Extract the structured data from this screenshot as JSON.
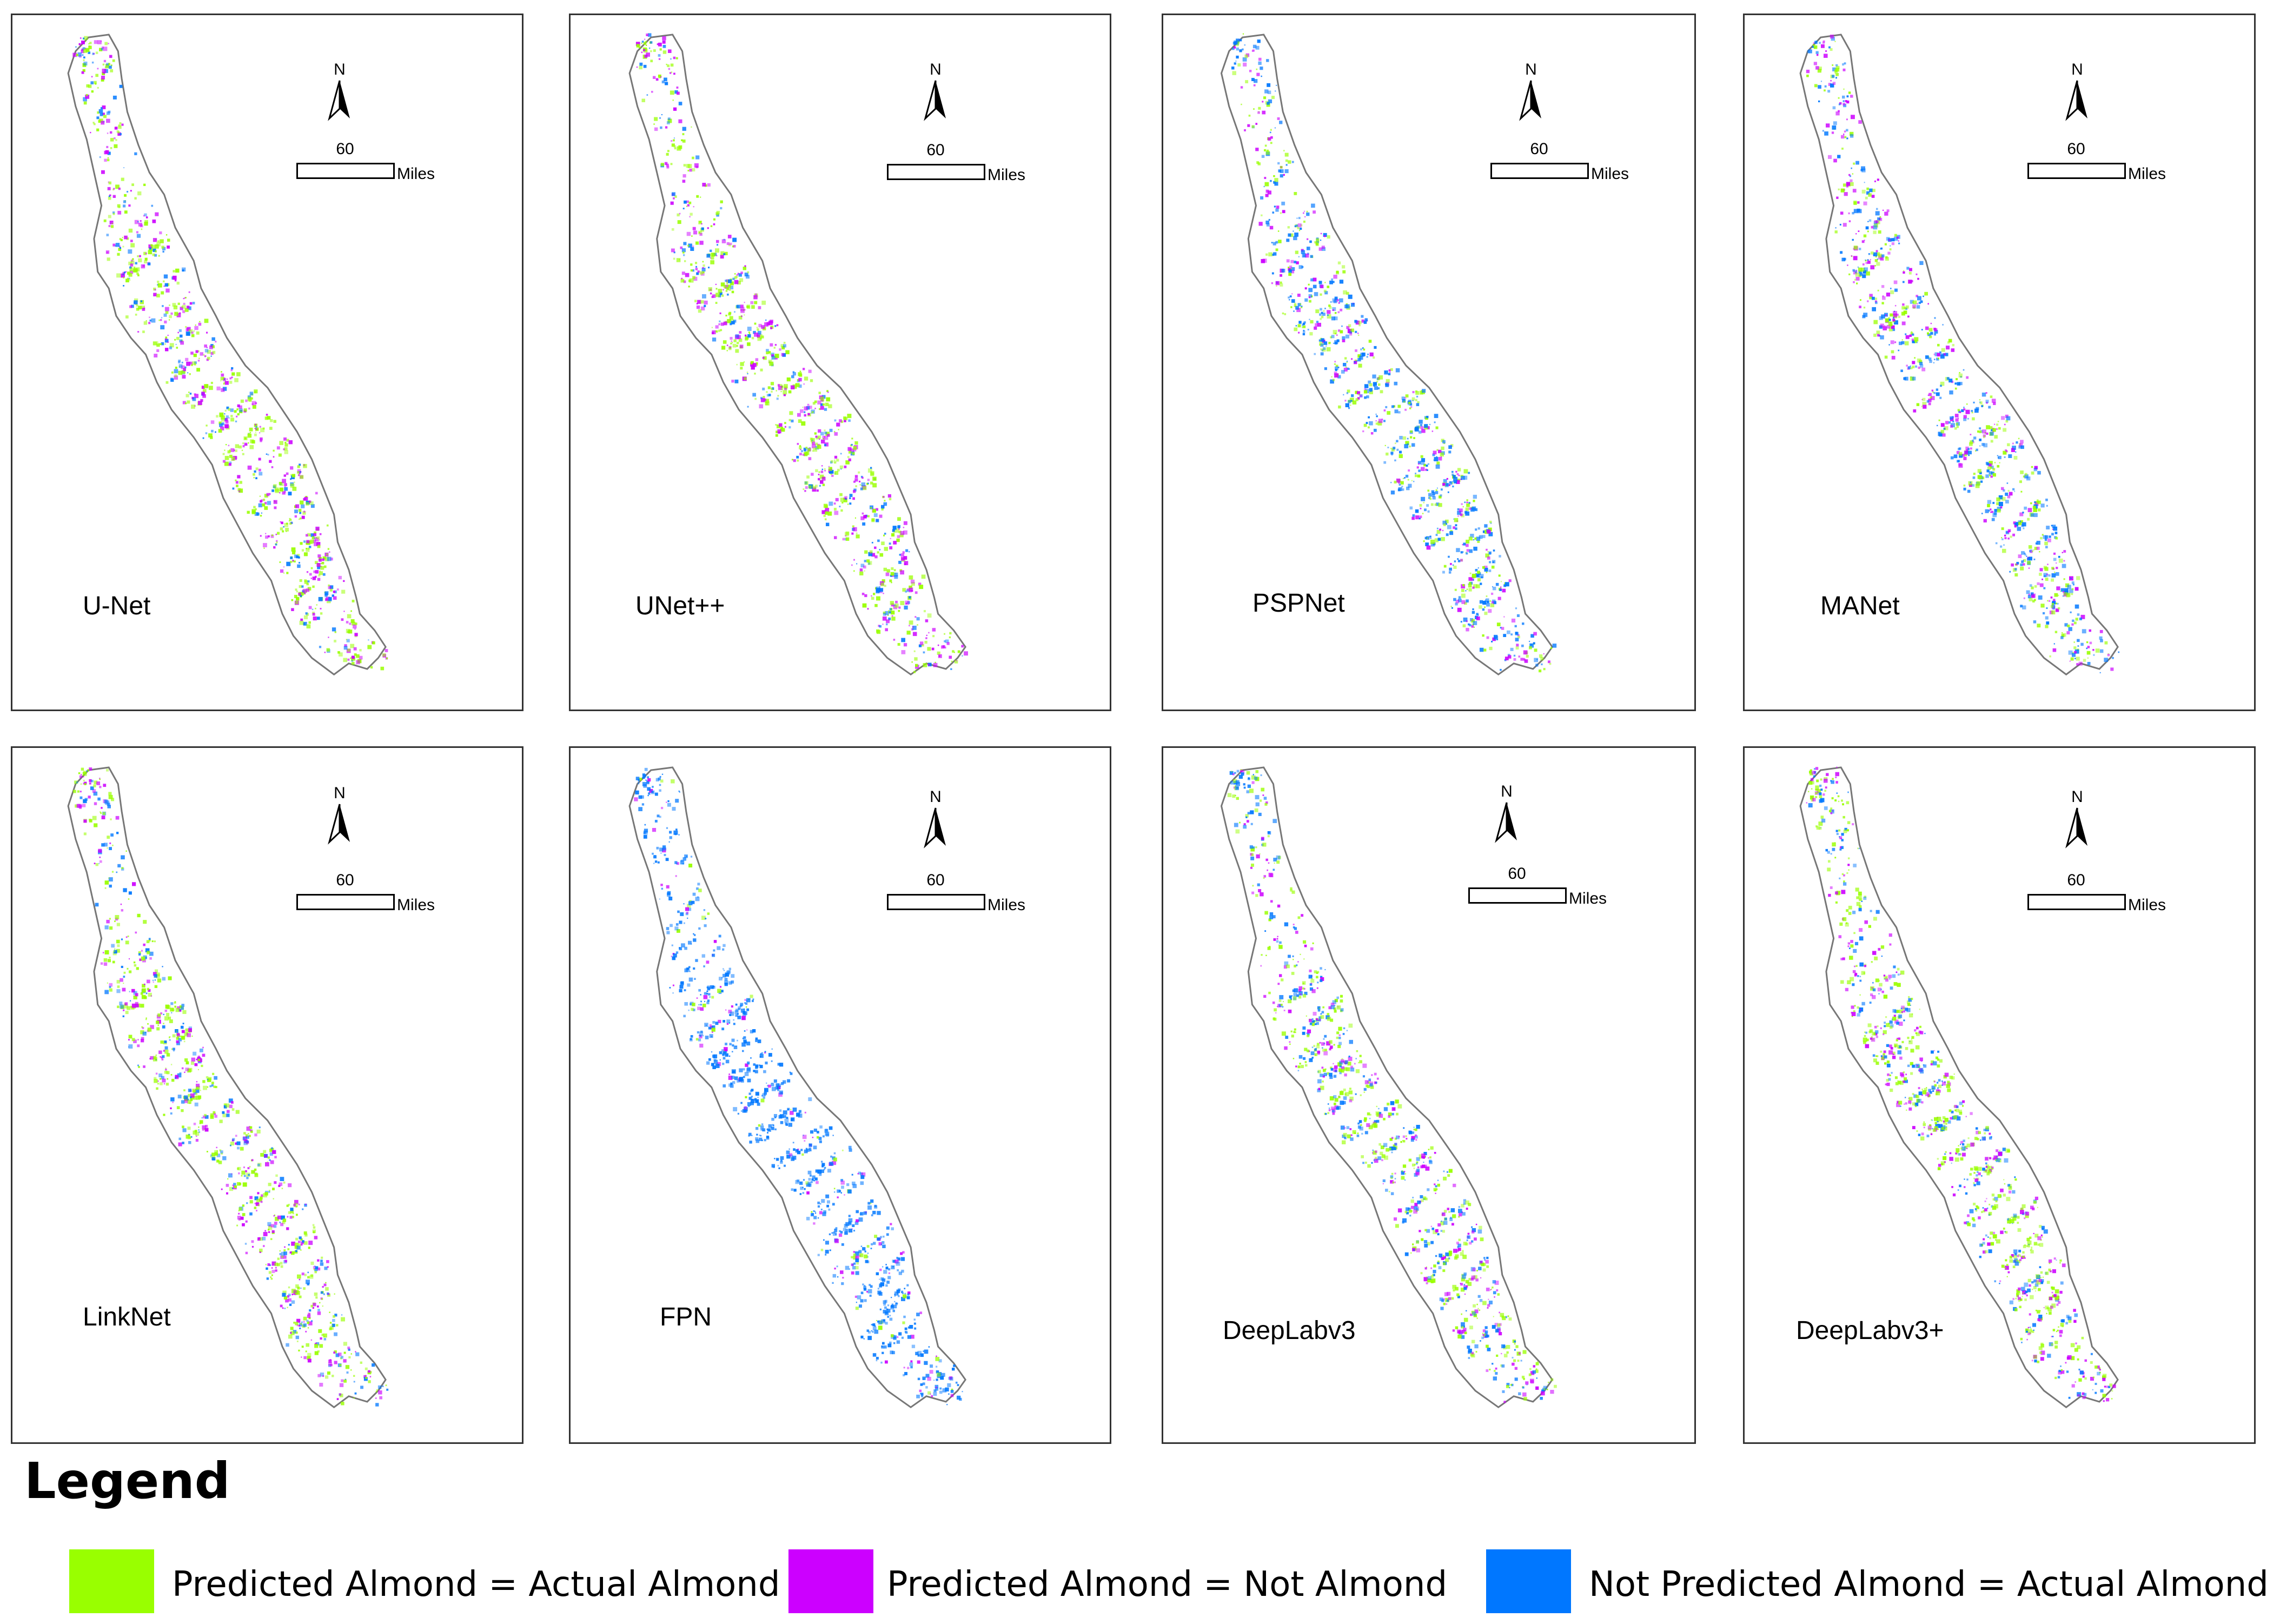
{
  "colors": {
    "actual_almond": "#99ff00",
    "predicted_not_almond": "#cc00ff",
    "not_predicted_actual": "#0077ff"
  },
  "north_arrow": {
    "letter": "N"
  },
  "scale_bar": {
    "value": "60",
    "unit": "Miles"
  },
  "panels": [
    {
      "label": "U-Net",
      "mix": [
        0.45,
        0.35,
        0.2
      ]
    },
    {
      "label": "UNet++",
      "mix": [
        0.45,
        0.35,
        0.2
      ]
    },
    {
      "label": "PSPNet",
      "mix": [
        0.3,
        0.2,
        0.5
      ]
    },
    {
      "label": "MANet",
      "mix": [
        0.3,
        0.3,
        0.4
      ]
    },
    {
      "label": "LinkNet",
      "mix": [
        0.45,
        0.3,
        0.25
      ]
    },
    {
      "label": "FPN",
      "mix": [
        0.05,
        0.1,
        0.85
      ]
    },
    {
      "label": "DeepLabv3",
      "mix": [
        0.4,
        0.25,
        0.35
      ]
    },
    {
      "label": "DeepLabv3+",
      "mix": [
        0.45,
        0.3,
        0.25
      ]
    }
  ],
  "legend": {
    "title": "Legend",
    "items": [
      {
        "label": "Predicted Almond = Actual Almond",
        "color_key": "actual_almond"
      },
      {
        "label": "Predicted Almond = Not Almond",
        "color_key": "predicted_not_almond"
      },
      {
        "label": "Not Predicted Almond = Actual Almond",
        "color_key": "not_predicted_actual"
      }
    ]
  }
}
